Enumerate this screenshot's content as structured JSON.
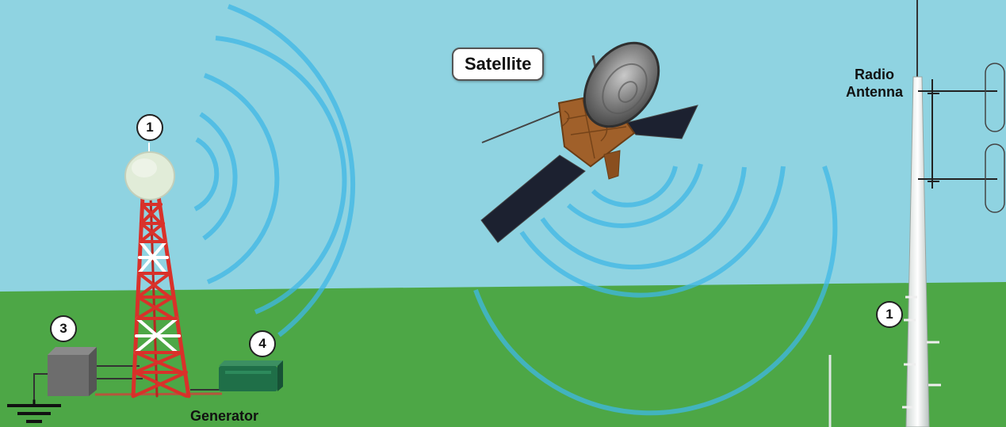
{
  "labels": {
    "satellite": "Satellite",
    "radio_antenna": "Radio Antenna",
    "generator": "Generator"
  },
  "markers": {
    "dish": "1",
    "shelter": "3",
    "generator": "4",
    "antenna": "1"
  },
  "colors": {
    "sky": "#8fd3e1",
    "ground": "#4da746",
    "signal": "#3fb8e6",
    "tower_red": "#d9312a"
  }
}
